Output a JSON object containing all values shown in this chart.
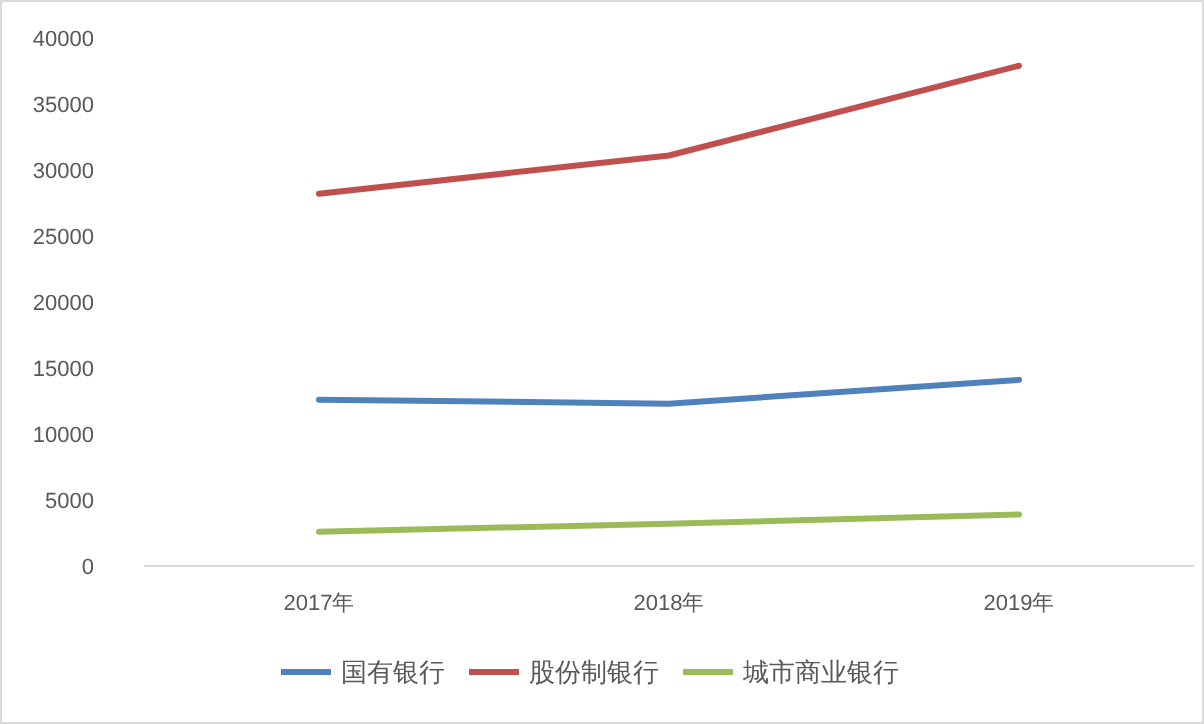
{
  "chart_data": {
    "type": "line",
    "categories": [
      "2017年",
      "2018年",
      "2019年"
    ],
    "series": [
      {
        "name": "国有银行",
        "color": "#4f81bd",
        "values": [
          12600,
          12300,
          14100
        ]
      },
      {
        "name": "股份制银行",
        "color": "#c0504d",
        "values": [
          28200,
          31100,
          37900
        ]
      },
      {
        "name": "城市商业银行",
        "color": "#9bbb59",
        "values": [
          2600,
          3200,
          3900
        ]
      }
    ],
    "ylim": [
      0,
      40000
    ],
    "yticks": [
      0,
      5000,
      10000,
      15000,
      20000,
      25000,
      30000,
      35000,
      40000
    ],
    "grid": false,
    "legend": "bottom",
    "marker": "none",
    "line_style": "solid"
  }
}
